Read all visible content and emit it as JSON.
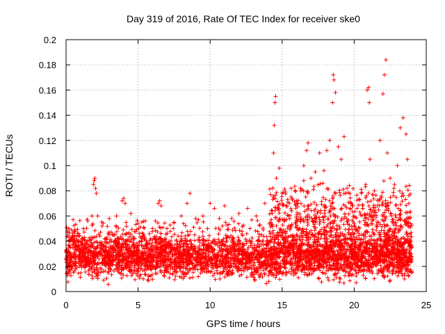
{
  "chart_data": {
    "type": "scatter",
    "title": "Day 319 of 2016, Rate Of TEC Index for receiver ske0",
    "xlabel": "GPS time / hours",
    "ylabel": "ROTI / TECUs",
    "xlim": [
      0,
      25
    ],
    "ylim": [
      0,
      0.2
    ],
    "x_ticks": [
      0,
      5,
      10,
      15,
      20,
      25
    ],
    "x_tick_labels": [
      "0",
      "5",
      "10",
      "15",
      "20",
      "25"
    ],
    "y_ticks": [
      0,
      0.02,
      0.04,
      0.06,
      0.08,
      0.1,
      0.12,
      0.14,
      0.16,
      0.18,
      0.2
    ],
    "y_tick_labels": [
      "0",
      "0.02",
      "0.04",
      "0.06",
      "0.08",
      "0.1",
      "0.12",
      "0.14",
      "0.16",
      "0.18",
      "0.2"
    ],
    "grid": true,
    "marker": "plus",
    "color": "#ff0000",
    "series": [
      {
        "name": "",
        "points": [
          [
            0.1,
            0.048
          ],
          [
            0.2,
            0.05
          ],
          [
            0.5,
            0.044
          ],
          [
            0.8,
            0.046
          ],
          [
            1.2,
            0.05
          ],
          [
            1.5,
            0.056
          ],
          [
            1.8,
            0.06
          ],
          [
            1.9,
            0.085
          ],
          [
            1.95,
            0.088
          ],
          [
            2.0,
            0.09
          ],
          [
            2.05,
            0.082
          ],
          [
            2.1,
            0.078
          ],
          [
            2.2,
            0.06
          ],
          [
            2.5,
            0.052
          ],
          [
            3.0,
            0.058
          ],
          [
            3.5,
            0.06
          ],
          [
            3.9,
            0.072
          ],
          [
            4.0,
            0.074
          ],
          [
            4.1,
            0.07
          ],
          [
            4.5,
            0.062
          ],
          [
            5.0,
            0.054
          ],
          [
            5.5,
            0.056
          ],
          [
            6.0,
            0.05
          ],
          [
            6.4,
            0.07
          ],
          [
            6.5,
            0.072
          ],
          [
            6.6,
            0.068
          ],
          [
            7.0,
            0.05
          ],
          [
            7.5,
            0.055
          ],
          [
            8.0,
            0.06
          ],
          [
            8.4,
            0.07
          ],
          [
            8.6,
            0.078
          ],
          [
            9.0,
            0.058
          ],
          [
            9.5,
            0.06
          ],
          [
            10.0,
            0.07
          ],
          [
            10.3,
            0.066
          ],
          [
            11.0,
            0.068
          ],
          [
            11.5,
            0.058
          ],
          [
            12.0,
            0.062
          ],
          [
            12.6,
            0.066
          ],
          [
            13.2,
            0.06
          ],
          [
            13.8,
            0.07
          ],
          [
            14.2,
            0.077
          ],
          [
            14.4,
            0.11
          ],
          [
            14.45,
            0.132
          ],
          [
            14.5,
            0.15
          ],
          [
            14.55,
            0.155
          ],
          [
            14.6,
            0.09
          ],
          [
            14.8,
            0.098
          ],
          [
            15.0,
            0.078
          ],
          [
            15.5,
            0.07
          ],
          [
            16.0,
            0.072
          ],
          [
            16.3,
            0.08
          ],
          [
            16.5,
            0.1
          ],
          [
            16.7,
            0.112
          ],
          [
            16.8,
            0.118
          ],
          [
            17.0,
            0.09
          ],
          [
            17.3,
            0.095
          ],
          [
            17.6,
            0.11
          ],
          [
            17.9,
            0.096
          ],
          [
            18.1,
            0.112
          ],
          [
            18.3,
            0.12
          ],
          [
            18.5,
            0.15
          ],
          [
            18.55,
            0.172
          ],
          [
            18.6,
            0.168
          ],
          [
            18.7,
            0.158
          ],
          [
            18.9,
            0.115
          ],
          [
            19.1,
            0.105
          ],
          [
            19.3,
            0.123
          ],
          [
            19.5,
            0.082
          ],
          [
            19.8,
            0.07
          ],
          [
            20.2,
            0.066
          ],
          [
            20.5,
            0.078
          ],
          [
            20.8,
            0.085
          ],
          [
            20.9,
            0.16
          ],
          [
            21.0,
            0.162
          ],
          [
            21.05,
            0.15
          ],
          [
            21.1,
            0.105
          ],
          [
            21.4,
            0.08
          ],
          [
            21.8,
            0.12
          ],
          [
            22.0,
            0.157
          ],
          [
            22.1,
            0.172
          ],
          [
            22.2,
            0.184
          ],
          [
            22.3,
            0.11
          ],
          [
            22.5,
            0.09
          ],
          [
            22.8,
            0.085
          ],
          [
            23.0,
            0.1
          ],
          [
            23.2,
            0.13
          ],
          [
            23.4,
            0.138
          ],
          [
            23.6,
            0.125
          ],
          [
            23.7,
            0.105
          ],
          [
            23.8,
            0.07
          ]
        ],
        "density_bands": [
          {
            "x": [
              0,
              24
            ],
            "y": [
              0.01,
              0.045
            ],
            "count": 2600
          },
          {
            "x": [
              0,
              24
            ],
            "y": [
              0.005,
              0.06
            ],
            "count": 1400
          },
          {
            "x": [
              14,
              24
            ],
            "y": [
              0.02,
              0.09
            ],
            "count": 700
          }
        ]
      }
    ]
  }
}
